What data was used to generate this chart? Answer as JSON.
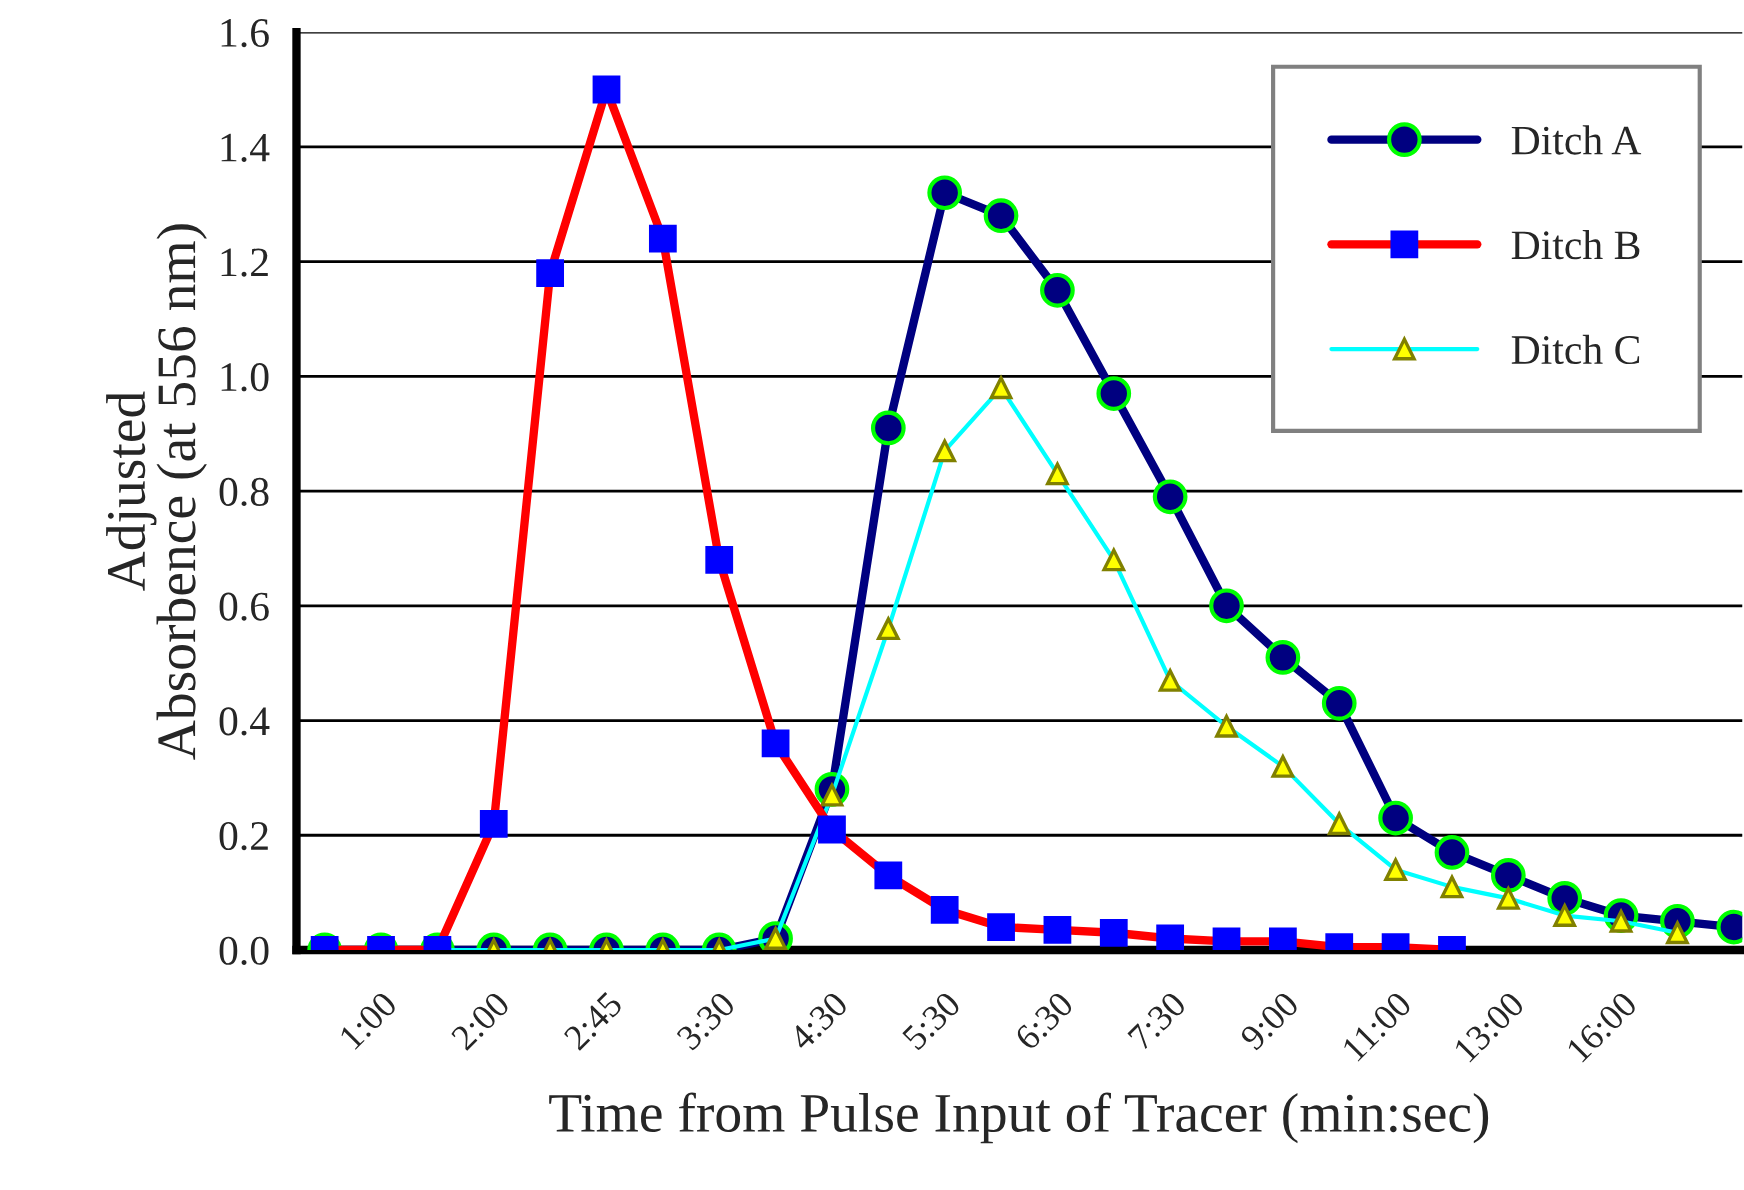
{
  "chart_data": {
    "type": "line",
    "xlabel": "Time from Pulse Input of Tracer (min:sec)",
    "ylabel": "Adjusted\nAbsorbence (at 556 nm)",
    "categories": [
      null,
      "1:00",
      null,
      "2:00",
      null,
      "2:45",
      null,
      "3:30",
      null,
      "4:30",
      null,
      "5:30",
      null,
      "6:30",
      null,
      "7:30",
      null,
      "9:00",
      null,
      "11:00",
      null,
      "13:00",
      null,
      "16:00",
      null,
      null
    ],
    "series": [
      {
        "name": "Ditch A",
        "color": "#000080",
        "marker": "circle",
        "values": [
          0,
          0,
          0,
          0,
          0,
          0,
          0,
          0,
          0.02,
          0.28,
          0.91,
          1.32,
          1.28,
          1.15,
          0.97,
          0.79,
          0.6,
          0.51,
          0.43,
          0.23,
          0.17,
          0.13,
          0.09,
          0.06,
          0.05,
          0.04
        ]
      },
      {
        "name": "Ditch B",
        "color": "#ff0000",
        "marker": "square",
        "values": [
          0,
          0,
          0,
          0.22,
          1.18,
          1.5,
          1.24,
          0.68,
          0.36,
          0.21,
          0.13,
          0.07,
          0.04,
          0.035,
          0.03,
          0.02,
          0.015,
          0.015,
          0.005,
          0.005,
          0,
          null,
          null,
          null,
          null,
          null
        ]
      },
      {
        "name": "Ditch C",
        "color": "#00ffff",
        "marker": "triangle",
        "values": [
          0,
          0,
          0,
          0,
          0,
          0,
          0,
          0,
          0.02,
          0.27,
          0.56,
          0.87,
          0.98,
          0.83,
          0.68,
          0.47,
          0.39,
          0.32,
          0.22,
          0.14,
          0.11,
          0.09,
          0.06,
          0.05,
          0.03,
          null
        ]
      }
    ],
    "ylim": [
      0,
      1.6
    ],
    "yticks": [
      {
        "value": 0,
        "label": "0.0"
      },
      {
        "value": 0.2,
        "label": "0.2"
      },
      {
        "value": 0.4,
        "label": "0.4"
      },
      {
        "value": 0.6,
        "label": "0.6"
      },
      {
        "value": 0.8,
        "label": "0.8"
      },
      {
        "value": 1.0,
        "label": "1.0"
      },
      {
        "value": 1.2,
        "label": "1.2"
      },
      {
        "value": 1.4,
        "label": "1.4"
      },
      {
        "value": 1.6,
        "label": "1.6"
      }
    ],
    "grid": "y",
    "legend": "top right",
    "line_style": "solid"
  }
}
